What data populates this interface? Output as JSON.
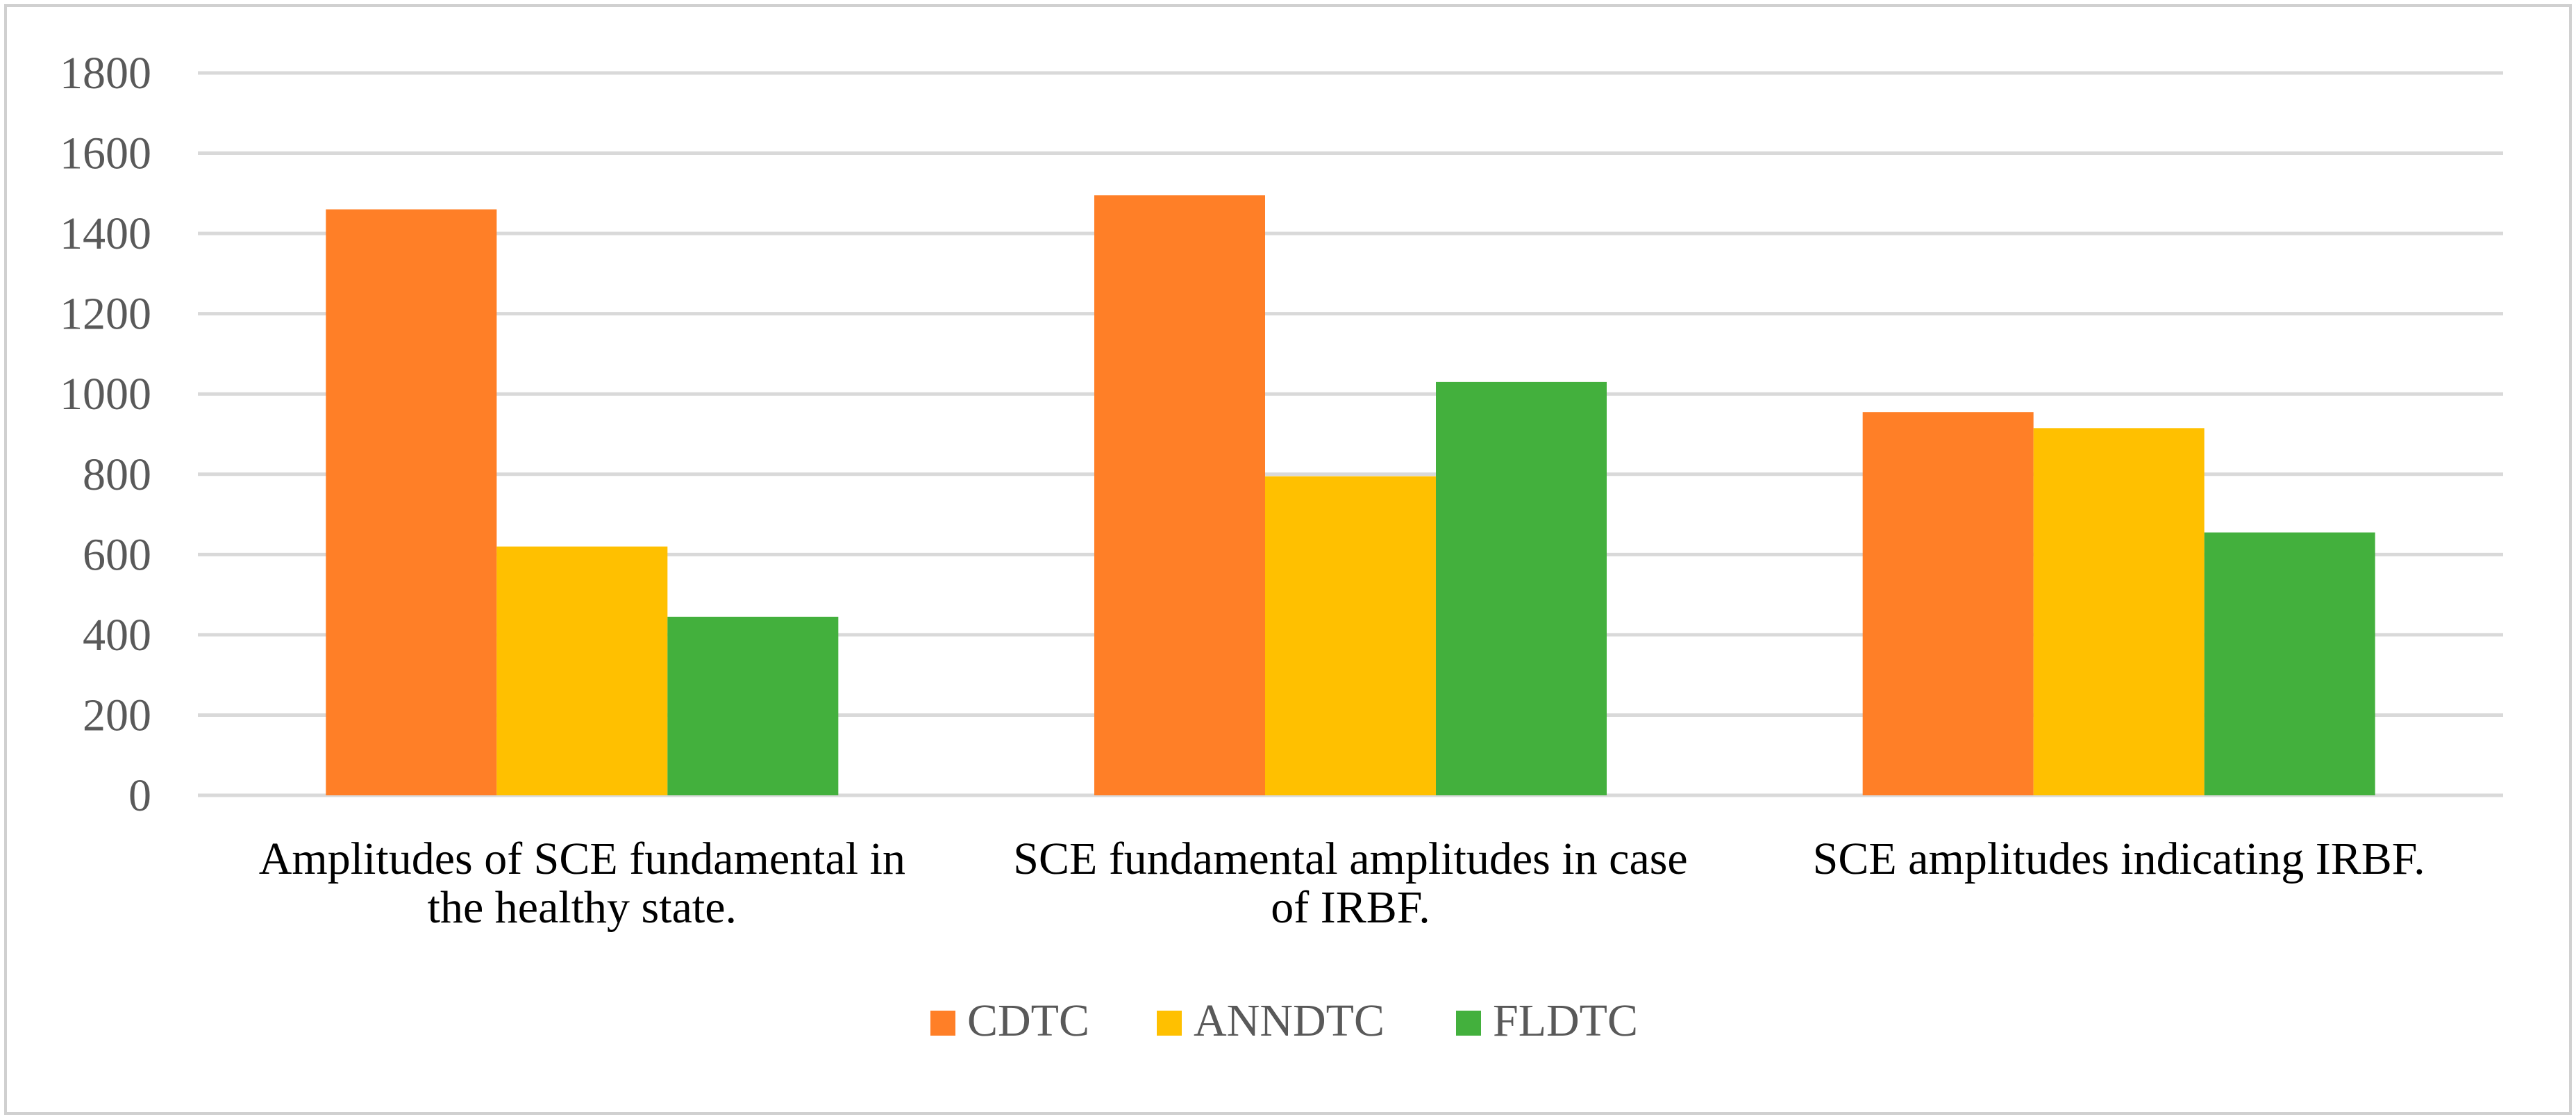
{
  "chart_data": {
    "type": "bar",
    "title": "",
    "xlabel": "",
    "ylabel": "",
    "ylim": [
      0,
      1800
    ],
    "yticks": [
      0,
      200,
      400,
      600,
      800,
      1000,
      1200,
      1400,
      1600,
      1800
    ],
    "grid": true,
    "legend_position": "bottom",
    "categories": [
      [
        "Amplitudes of SCE fundamental in",
        "the healthy state."
      ],
      [
        "SCE fundamental amplitudes in case",
        "of IRBF."
      ],
      [
        "SCE amplitudes indicating IRBF."
      ]
    ],
    "series": [
      {
        "name": "CDTC",
        "color": "#ff7f27",
        "values": [
          1460,
          1495,
          955
        ]
      },
      {
        "name": "ANNDTC",
        "color": "#ffc000",
        "values": [
          620,
          795,
          915
        ]
      },
      {
        "name": "FLDTC",
        "color": "#43b03d",
        "values": [
          445,
          1030,
          655
        ]
      }
    ]
  },
  "colors": {
    "gridline": "#d9d9d9",
    "axis": "#d9d9d9",
    "frame": "#d0d0d0"
  }
}
